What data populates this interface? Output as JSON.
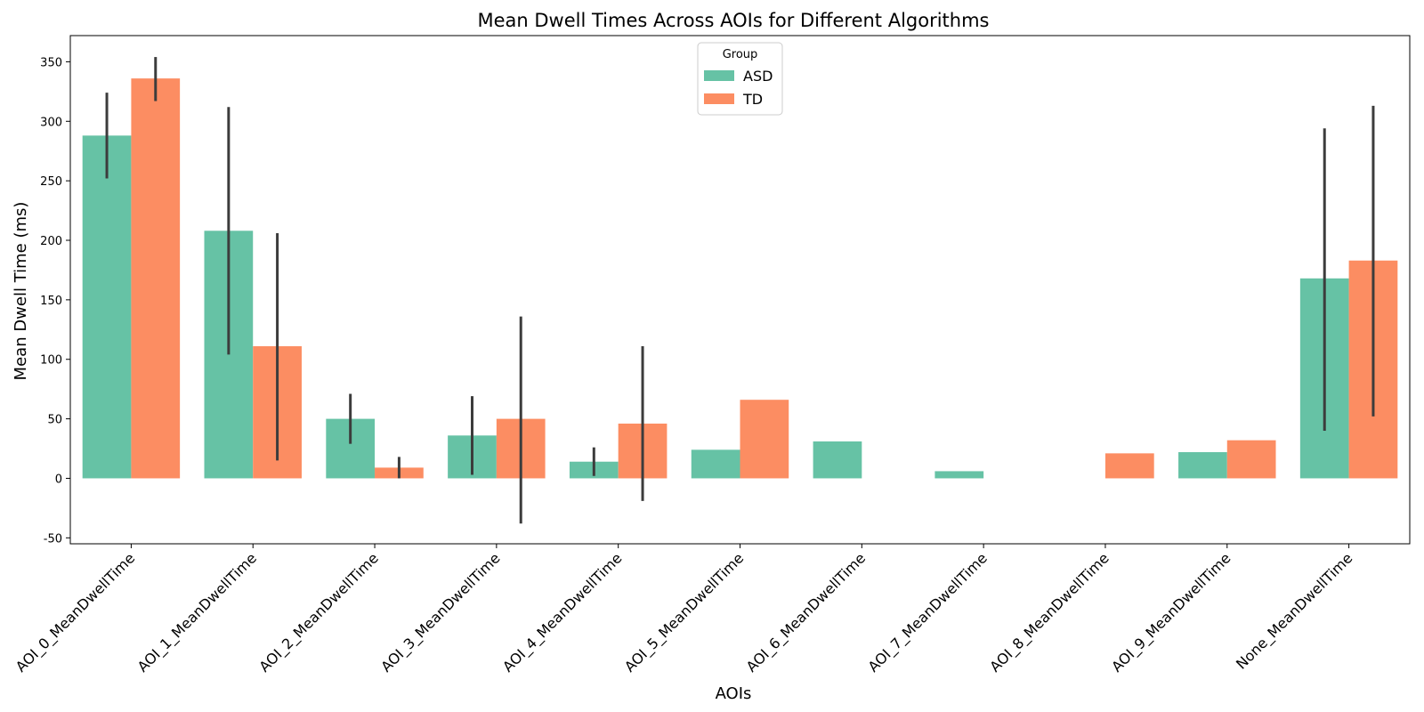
{
  "chart_data": {
    "type": "bar",
    "title": "Mean Dwell Times Across AOIs for Different Algorithms",
    "xlabel": "AOIs",
    "ylabel": "Mean Dwell Time (ms)",
    "ylim": [
      -55,
      372
    ],
    "yticks": [
      -50,
      0,
      50,
      100,
      150,
      200,
      250,
      300,
      350
    ],
    "categories": [
      "AOI_0_MeanDwellTime",
      "AOI_1_MeanDwellTime",
      "AOI_2_MeanDwellTime",
      "AOI_3_MeanDwellTime",
      "AOI_4_MeanDwellTime",
      "AOI_5_MeanDwellTime",
      "AOI_6_MeanDwellTime",
      "AOI_7_MeanDwellTime",
      "AOI_8_MeanDwellTime",
      "AOI_9_MeanDwellTime",
      "None_MeanDwellTime"
    ],
    "series": [
      {
        "name": "ASD",
        "color": "#66c2a5",
        "values": [
          288,
          208,
          50,
          36,
          14,
          24,
          31,
          6,
          0,
          22,
          168
        ],
        "error_low": [
          252,
          104,
          29,
          3,
          2,
          null,
          null,
          null,
          null,
          null,
          40
        ],
        "error_high": [
          324,
          312,
          71,
          69,
          26,
          null,
          null,
          null,
          null,
          null,
          294
        ]
      },
      {
        "name": "TD",
        "color": "#fc8d62",
        "values": [
          336,
          111,
          9,
          50,
          46,
          66,
          0,
          0,
          21,
          32,
          183
        ],
        "error_low": [
          317,
          15,
          0,
          -38,
          -19,
          null,
          null,
          null,
          null,
          null,
          52
        ],
        "error_high": [
          354,
          206,
          18,
          136,
          111,
          null,
          null,
          null,
          null,
          null,
          313
        ]
      }
    ],
    "legend": {
      "title": "Group",
      "position": "top-center"
    },
    "grid": false
  }
}
